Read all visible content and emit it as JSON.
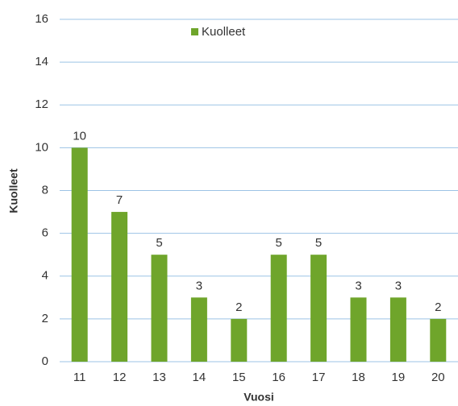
{
  "chart_data": {
    "type": "bar",
    "categories": [
      "11",
      "12",
      "13",
      "14",
      "15",
      "16",
      "17",
      "18",
      "19",
      "20"
    ],
    "series": [
      {
        "name": "Kuolleet",
        "color": "#6fa52b",
        "values": [
          10,
          7,
          5,
          3,
          2,
          5,
          5,
          3,
          3,
          2
        ]
      }
    ],
    "x_label": "Vuosi",
    "y_label": "Kuolleet",
    "ylim": [
      0,
      16
    ],
    "yticks": [
      0,
      2,
      4,
      6,
      8,
      10,
      12,
      14,
      16
    ],
    "grid": true,
    "legend": "top"
  }
}
